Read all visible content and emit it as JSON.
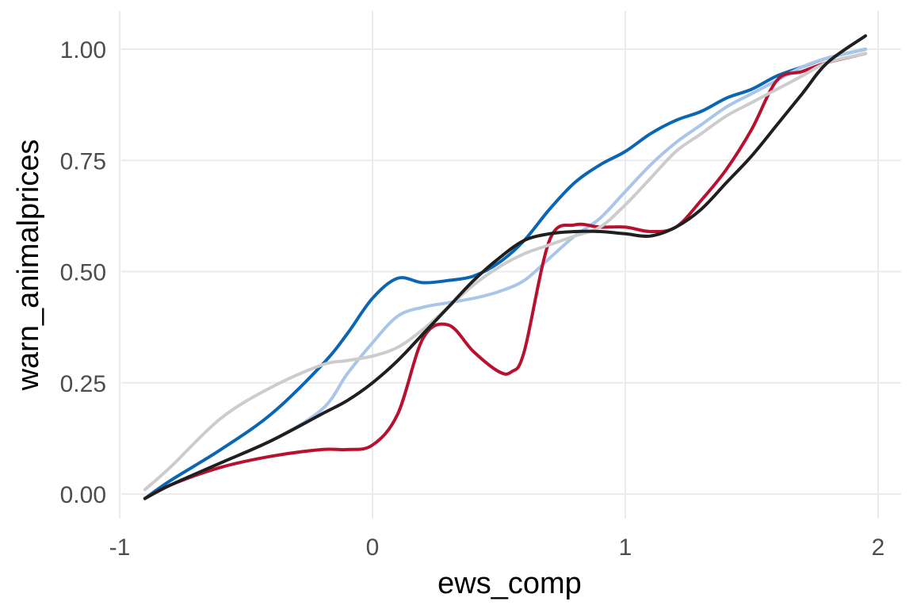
{
  "chart_data": {
    "type": "line",
    "xlabel": "ews_comp",
    "ylabel": "warn_animalprices",
    "xlim": [
      -1.0,
      2.1
    ],
    "ylim": [
      -0.05,
      1.08
    ],
    "xticks": [
      -1,
      0,
      1,
      2
    ],
    "xtick_labels": [
      "-1",
      "0",
      "1",
      "2"
    ],
    "yticks": [
      0.0,
      0.25,
      0.5,
      0.75,
      1.0
    ],
    "ytick_labels": [
      "0.00",
      "0.25",
      "0.50",
      "0.75",
      "1.00"
    ],
    "grid": true,
    "legend": "none",
    "series": [
      {
        "color": "#0a66b2",
        "points": [
          [
            -0.9,
            -0.01
          ],
          [
            -0.8,
            0.03
          ],
          [
            -0.6,
            0.1
          ],
          [
            -0.4,
            0.18
          ],
          [
            -0.2,
            0.29
          ],
          [
            -0.1,
            0.36
          ],
          [
            0.0,
            0.44
          ],
          [
            0.1,
            0.485
          ],
          [
            0.2,
            0.475
          ],
          [
            0.3,
            0.48
          ],
          [
            0.4,
            0.49
          ],
          [
            0.5,
            0.52
          ],
          [
            0.6,
            0.57
          ],
          [
            0.7,
            0.64
          ],
          [
            0.8,
            0.7
          ],
          [
            0.9,
            0.74
          ],
          [
            1.0,
            0.77
          ],
          [
            1.1,
            0.81
          ],
          [
            1.2,
            0.84
          ],
          [
            1.3,
            0.86
          ],
          [
            1.4,
            0.89
          ],
          [
            1.5,
            0.91
          ],
          [
            1.6,
            0.94
          ],
          [
            1.7,
            0.96
          ],
          [
            1.8,
            0.98
          ],
          [
            1.95,
            1.0
          ]
        ]
      },
      {
        "color": "#a9c6e9",
        "points": [
          [
            -0.9,
            -0.01
          ],
          [
            -0.8,
            0.02
          ],
          [
            -0.6,
            0.07
          ],
          [
            -0.4,
            0.12
          ],
          [
            -0.2,
            0.19
          ],
          [
            -0.1,
            0.27
          ],
          [
            0.0,
            0.34
          ],
          [
            0.1,
            0.4
          ],
          [
            0.2,
            0.42
          ],
          [
            0.3,
            0.43
          ],
          [
            0.4,
            0.44
          ],
          [
            0.5,
            0.455
          ],
          [
            0.6,
            0.48
          ],
          [
            0.7,
            0.53
          ],
          [
            0.8,
            0.58
          ],
          [
            0.9,
            0.62
          ],
          [
            1.0,
            0.68
          ],
          [
            1.1,
            0.74
          ],
          [
            1.2,
            0.79
          ],
          [
            1.3,
            0.83
          ],
          [
            1.4,
            0.87
          ],
          [
            1.5,
            0.9
          ],
          [
            1.6,
            0.93
          ],
          [
            1.7,
            0.96
          ],
          [
            1.8,
            0.98
          ],
          [
            1.95,
            1.0
          ]
        ]
      },
      {
        "color": "#b7112f",
        "points": [
          [
            -0.9,
            -0.01
          ],
          [
            -0.8,
            0.02
          ],
          [
            -0.6,
            0.06
          ],
          [
            -0.4,
            0.085
          ],
          [
            -0.2,
            0.1
          ],
          [
            -0.1,
            0.1
          ],
          [
            0.0,
            0.11
          ],
          [
            0.1,
            0.18
          ],
          [
            0.2,
            0.35
          ],
          [
            0.3,
            0.38
          ],
          [
            0.4,
            0.32
          ],
          [
            0.5,
            0.275
          ],
          [
            0.55,
            0.275
          ],
          [
            0.6,
            0.32
          ],
          [
            0.7,
            0.57
          ],
          [
            0.8,
            0.605
          ],
          [
            0.9,
            0.6
          ],
          [
            1.0,
            0.6
          ],
          [
            1.1,
            0.59
          ],
          [
            1.2,
            0.6
          ],
          [
            1.3,
            0.66
          ],
          [
            1.4,
            0.73
          ],
          [
            1.5,
            0.82
          ],
          [
            1.6,
            0.93
          ],
          [
            1.7,
            0.95
          ],
          [
            1.8,
            0.97
          ],
          [
            1.95,
            0.99
          ]
        ]
      },
      {
        "color": "#cccccc",
        "points": [
          [
            -0.9,
            0.01
          ],
          [
            -0.8,
            0.06
          ],
          [
            -0.6,
            0.17
          ],
          [
            -0.4,
            0.24
          ],
          [
            -0.2,
            0.29
          ],
          [
            -0.1,
            0.3
          ],
          [
            0.0,
            0.31
          ],
          [
            0.1,
            0.33
          ],
          [
            0.2,
            0.37
          ],
          [
            0.3,
            0.42
          ],
          [
            0.4,
            0.47
          ],
          [
            0.5,
            0.51
          ],
          [
            0.6,
            0.54
          ],
          [
            0.7,
            0.56
          ],
          [
            0.8,
            0.58
          ],
          [
            0.9,
            0.6
          ],
          [
            1.0,
            0.65
          ],
          [
            1.1,
            0.71
          ],
          [
            1.2,
            0.77
          ],
          [
            1.3,
            0.81
          ],
          [
            1.4,
            0.85
          ],
          [
            1.5,
            0.88
          ],
          [
            1.6,
            0.91
          ],
          [
            1.7,
            0.94
          ],
          [
            1.8,
            0.97
          ],
          [
            1.95,
            0.99
          ]
        ]
      },
      {
        "color": "#1f1f1f",
        "points": [
          [
            -0.9,
            -0.01
          ],
          [
            -0.8,
            0.02
          ],
          [
            -0.6,
            0.07
          ],
          [
            -0.4,
            0.12
          ],
          [
            -0.2,
            0.18
          ],
          [
            -0.1,
            0.21
          ],
          [
            0.0,
            0.25
          ],
          [
            0.1,
            0.3
          ],
          [
            0.2,
            0.36
          ],
          [
            0.3,
            0.42
          ],
          [
            0.4,
            0.48
          ],
          [
            0.5,
            0.53
          ],
          [
            0.6,
            0.57
          ],
          [
            0.7,
            0.585
          ],
          [
            0.8,
            0.59
          ],
          [
            0.9,
            0.59
          ],
          [
            1.0,
            0.585
          ],
          [
            1.1,
            0.58
          ],
          [
            1.2,
            0.6
          ],
          [
            1.3,
            0.64
          ],
          [
            1.4,
            0.7
          ],
          [
            1.5,
            0.76
          ],
          [
            1.6,
            0.83
          ],
          [
            1.7,
            0.9
          ],
          [
            1.8,
            0.97
          ],
          [
            1.95,
            1.03
          ]
        ]
      }
    ]
  }
}
